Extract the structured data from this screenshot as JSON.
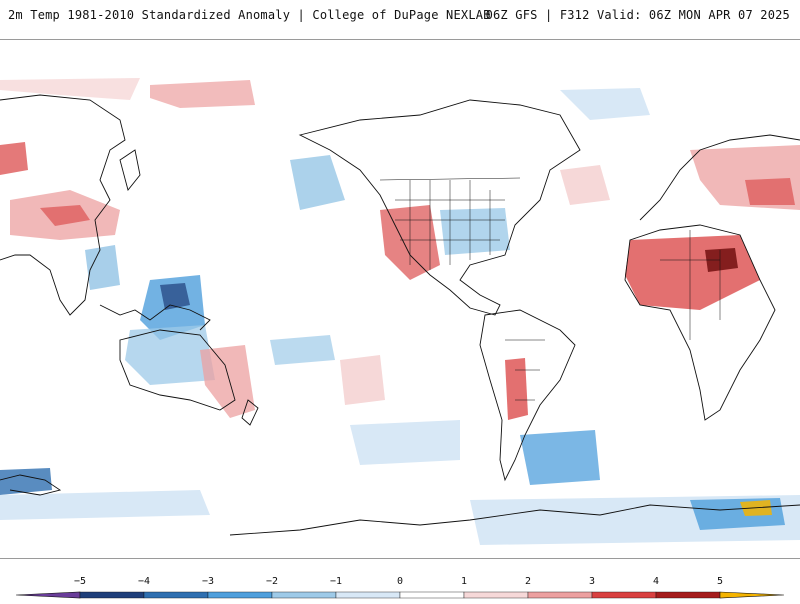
{
  "header": {
    "title_left": "2m Temp 1981-2010 Standardized Anomaly | College of DuPage NEXLAB",
    "title_right": "06Z GFS | F312 Valid: 06Z MON APR 07 2025"
  },
  "map": {
    "field": "2m temperature standardized anomaly",
    "model": "GFS",
    "projection": "global cylindrical (Pacific-centered)"
  },
  "colorbar": {
    "tick_labels": [
      "−5",
      "−4",
      "−3",
      "−2",
      "−1",
      "0",
      "1",
      "2",
      "3",
      "4",
      "5"
    ],
    "colors": [
      "#6a3d9a",
      "#1f3f7a",
      "#2f6fb0",
      "#4f9fdc",
      "#9ecae8",
      "#d8e8f6",
      "#ffffff",
      "#f6d8d8",
      "#eca0a0",
      "#d94040",
      "#a51c1c",
      "#6b0a0a",
      "#f5b400"
    ]
  }
}
